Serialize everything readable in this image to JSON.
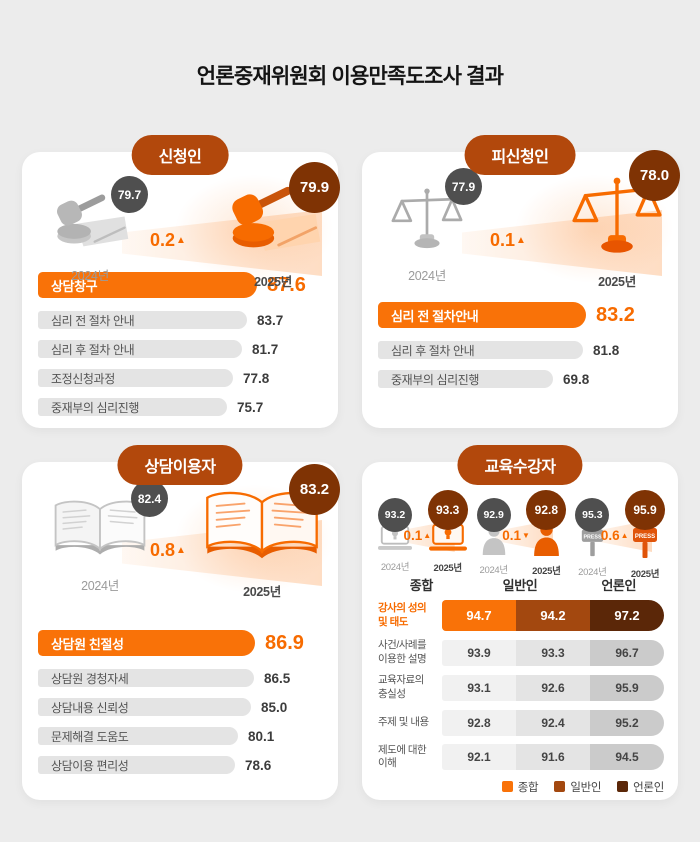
{
  "title": "언론중재위원회 이용만족도조사 결과",
  "colors": {
    "background": "#ECECEC",
    "card": "#FFFFFF",
    "accent_orange": "#F76B00",
    "highlight_bar_orange": "#F97208",
    "pill_brown": "#B2480C",
    "badge_gray": "#4F4F4F",
    "badge_brown": "#7F3304",
    "table_mid_brown": "#A3480F",
    "table_dark_brown": "#5B2708",
    "gray_bar": "#E4E4E4"
  },
  "icons": {
    "applicant": "gavel-icon",
    "respondent": "scales-icon",
    "counseling": "open-book-icon",
    "education_overall": "laptop-bulb-icon",
    "education_public": "person-icon",
    "education_press": "press-mic-icon",
    "press_label": "PRESS",
    "up_arrow": "▲",
    "down_arrow": "▼"
  },
  "chart_data": [
    {
      "type": "bar",
      "title": "신청인",
      "yearly": {
        "categories": [
          "2024년",
          "2025년"
        ],
        "values": [
          "79.7",
          "79.9"
        ],
        "change": "0.2",
        "direction": "▲"
      },
      "categories": [
        "상담창구",
        "심리 전 절차 안내",
        "심리 후 절차 안내",
        "조정신청과정",
        "중재부의 심리진행"
      ],
      "values": [
        "87.6",
        "83.7",
        "81.7",
        "77.8",
        "75.7"
      ],
      "xlim": [
        0,
        100
      ],
      "highlight_index": 0
    },
    {
      "type": "bar",
      "title": "피신청인",
      "yearly": {
        "categories": [
          "2024년",
          "2025년"
        ],
        "values": [
          "77.9",
          "78.0"
        ],
        "change": "0.1",
        "direction": "▲"
      },
      "categories": [
        "심리 전 절차안내",
        "심리 후 절차 안내",
        "중재부의 심리진행"
      ],
      "values": [
        "83.2",
        "81.8",
        "69.8"
      ],
      "xlim": [
        0,
        100
      ],
      "highlight_index": 0
    },
    {
      "type": "bar",
      "title": "상담이용자",
      "yearly": {
        "categories": [
          "2024년",
          "2025년"
        ],
        "values": [
          "82.4",
          "83.2"
        ],
        "change": "0.8",
        "direction": "▲"
      },
      "categories": [
        "상담원 친절성",
        "상담원 경청자세",
        "상담내용 신뢰성",
        "문제해결 도움도",
        "상담이용 편리성"
      ],
      "values": [
        "86.9",
        "86.5",
        "85.0",
        "80.1",
        "78.6"
      ],
      "xlim": [
        0,
        100
      ],
      "highlight_index": 0
    },
    {
      "type": "table",
      "title": "교육수강자",
      "groups": [
        {
          "label": "종합",
          "years": [
            "2024년",
            "2025년"
          ],
          "values": [
            "93.2",
            "93.3"
          ],
          "change": "0.1",
          "direction": "▲"
        },
        {
          "label": "일반인",
          "years": [
            "2024년",
            "2025년"
          ],
          "values": [
            "92.9",
            "92.8"
          ],
          "change": "0.1",
          "direction": "▼"
        },
        {
          "label": "언론인",
          "years": [
            "2024년",
            "2025년"
          ],
          "values": [
            "95.3",
            "95.9"
          ],
          "change": "0.6",
          "direction": "▲"
        }
      ],
      "rows": [
        {
          "label": "강사의 성의\n및 태도",
          "values": [
            "94.7",
            "94.2",
            "97.2"
          ],
          "highlight": true
        },
        {
          "label": "사건/사례를\n이용한 설명",
          "values": [
            "93.9",
            "93.3",
            "96.7"
          ]
        },
        {
          "label": "교육자료의\n충실성",
          "values": [
            "93.1",
            "92.6",
            "95.9"
          ]
        },
        {
          "label": "주제 및 내용",
          "values": [
            "92.8",
            "92.4",
            "95.2"
          ]
        },
        {
          "label": "제도에 대한\n이해",
          "values": [
            "92.1",
            "91.6",
            "94.5"
          ]
        }
      ],
      "legend": [
        "종합",
        "일반인",
        "언론인"
      ]
    }
  ]
}
